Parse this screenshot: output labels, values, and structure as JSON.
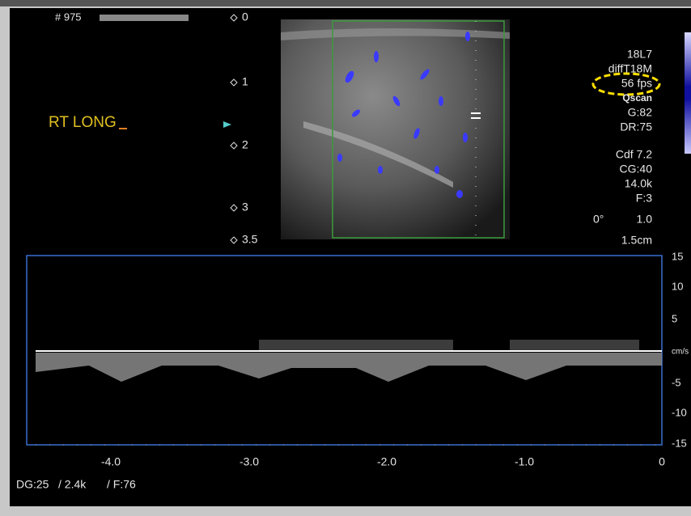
{
  "header": {
    "frame": "# 975"
  },
  "annotation": "RT LONG",
  "depth_scale": [
    "0",
    "1",
    "2",
    "3",
    "3.5"
  ],
  "parameters": [
    "18L7",
    "diffT18M",
    "56 fps",
    "Qscan",
    "G:82",
    "DR:75",
    "Cdf 7.2",
    "CG:40",
    "14.0k",
    "F:3"
  ],
  "angle": {
    "angle": "0°",
    "correction": "1.0"
  },
  "depth": "1.5cm",
  "doppler": {
    "velocity_scale": [
      "15",
      "10",
      "5",
      "cm/s",
      "-5",
      "-10",
      "-15"
    ],
    "time_scale": [
      "-4.0",
      "-3.0",
      "-2.0",
      "-1.0",
      "0"
    ]
  },
  "footer": [
    "DG:25",
    "/ 2.4k",
    "/ F:76"
  ]
}
